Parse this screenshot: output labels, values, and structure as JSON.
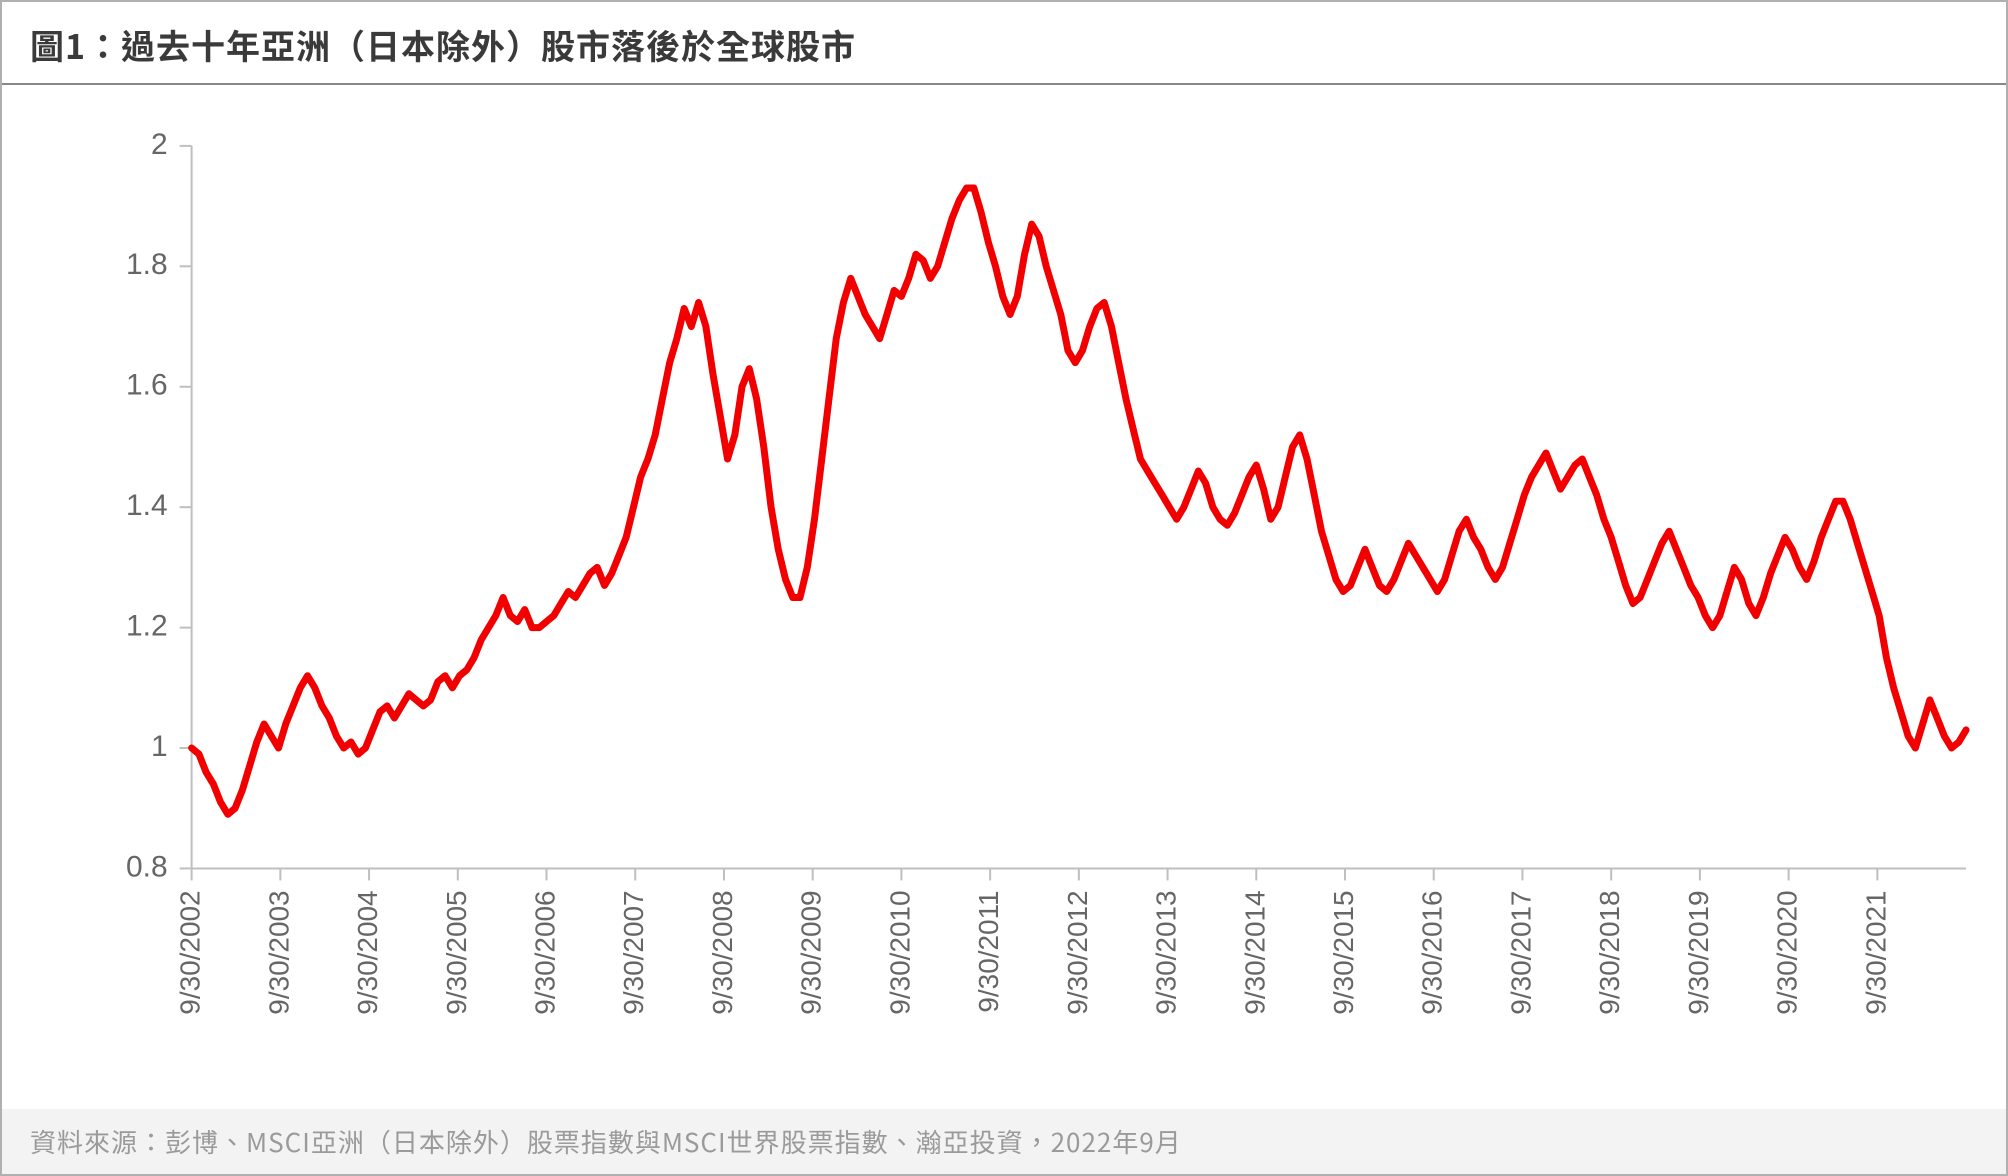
{
  "title": "圖1：過去十年亞洲（日本除外）股市落後於全球股市",
  "source": "資料來源：彭博、MSCI亞洲（日本除外）股票指數與MSCI世界股票指數、瀚亞投資，2022年9月",
  "chart": {
    "type": "line",
    "background_color": "#ffffff",
    "border_color": "#b0b0b0",
    "title_fontsize": 34,
    "title_color": "#3a3a3a",
    "source_bg": "#f3f3f3",
    "source_color": "#9a9a9a",
    "source_fontsize": 26,
    "line_color": "#f20000",
    "line_width": 7,
    "axis_color": "#bfbfbf",
    "tick_label_color": "#666666",
    "ytick_fontsize": 30,
    "xtick_fontsize": 28,
    "ylim": [
      0.8,
      2.0
    ],
    "ytick_step": 0.2,
    "yticks": [
      0.8,
      1,
      1.2,
      1.4,
      1.6,
      1.8,
      2
    ],
    "xticks": [
      "9/30/2002",
      "9/30/2003",
      "9/30/2004",
      "9/30/2005",
      "9/30/2006",
      "9/30/2007",
      "9/30/2008",
      "9/30/2009",
      "9/30/2010",
      "9/30/2011",
      "9/30/2012",
      "9/30/2013",
      "9/30/2014",
      "9/30/2015",
      "9/30/2016",
      "9/30/2017",
      "9/30/2018",
      "9/30/2019",
      "9/30/2020",
      "9/30/2021"
    ],
    "x_count": 240,
    "values": [
      1.0,
      0.99,
      0.96,
      0.94,
      0.91,
      0.89,
      0.9,
      0.93,
      0.97,
      1.01,
      1.04,
      1.02,
      1.0,
      1.04,
      1.07,
      1.1,
      1.12,
      1.1,
      1.07,
      1.05,
      1.02,
      1.0,
      1.01,
      0.99,
      1.0,
      1.03,
      1.06,
      1.07,
      1.05,
      1.07,
      1.09,
      1.08,
      1.07,
      1.08,
      1.11,
      1.12,
      1.1,
      1.12,
      1.13,
      1.15,
      1.18,
      1.2,
      1.22,
      1.25,
      1.22,
      1.21,
      1.23,
      1.2,
      1.2,
      1.21,
      1.22,
      1.24,
      1.26,
      1.25,
      1.27,
      1.29,
      1.3,
      1.27,
      1.29,
      1.32,
      1.35,
      1.4,
      1.45,
      1.48,
      1.52,
      1.58,
      1.64,
      1.68,
      1.73,
      1.7,
      1.74,
      1.7,
      1.62,
      1.55,
      1.48,
      1.52,
      1.6,
      1.63,
      1.58,
      1.5,
      1.4,
      1.33,
      1.28,
      1.25,
      1.25,
      1.3,
      1.38,
      1.48,
      1.58,
      1.68,
      1.74,
      1.78,
      1.75,
      1.72,
      1.7,
      1.68,
      1.72,
      1.76,
      1.75,
      1.78,
      1.82,
      1.81,
      1.78,
      1.8,
      1.84,
      1.88,
      1.91,
      1.93,
      1.93,
      1.89,
      1.84,
      1.8,
      1.75,
      1.72,
      1.75,
      1.82,
      1.87,
      1.85,
      1.8,
      1.76,
      1.72,
      1.66,
      1.64,
      1.66,
      1.7,
      1.73,
      1.74,
      1.7,
      1.64,
      1.58,
      1.53,
      1.48,
      1.46,
      1.44,
      1.42,
      1.4,
      1.38,
      1.4,
      1.43,
      1.46,
      1.44,
      1.4,
      1.38,
      1.37,
      1.39,
      1.42,
      1.45,
      1.47,
      1.43,
      1.38,
      1.4,
      1.45,
      1.5,
      1.52,
      1.48,
      1.42,
      1.36,
      1.32,
      1.28,
      1.26,
      1.27,
      1.3,
      1.33,
      1.3,
      1.27,
      1.26,
      1.28,
      1.31,
      1.34,
      1.32,
      1.3,
      1.28,
      1.26,
      1.28,
      1.32,
      1.36,
      1.38,
      1.35,
      1.33,
      1.3,
      1.28,
      1.3,
      1.34,
      1.38,
      1.42,
      1.45,
      1.47,
      1.49,
      1.46,
      1.43,
      1.45,
      1.47,
      1.48,
      1.45,
      1.42,
      1.38,
      1.35,
      1.31,
      1.27,
      1.24,
      1.25,
      1.28,
      1.31,
      1.34,
      1.36,
      1.33,
      1.3,
      1.27,
      1.25,
      1.22,
      1.2,
      1.22,
      1.26,
      1.3,
      1.28,
      1.24,
      1.22,
      1.25,
      1.29,
      1.32,
      1.35,
      1.33,
      1.3,
      1.28,
      1.31,
      1.35,
      1.38,
      1.41,
      1.41,
      1.38,
      1.34,
      1.3,
      1.26,
      1.22,
      1.15,
      1.1,
      1.06,
      1.02,
      1.0,
      1.04,
      1.08,
      1.05,
      1.02,
      1.0,
      1.01,
      1.03
    ]
  }
}
